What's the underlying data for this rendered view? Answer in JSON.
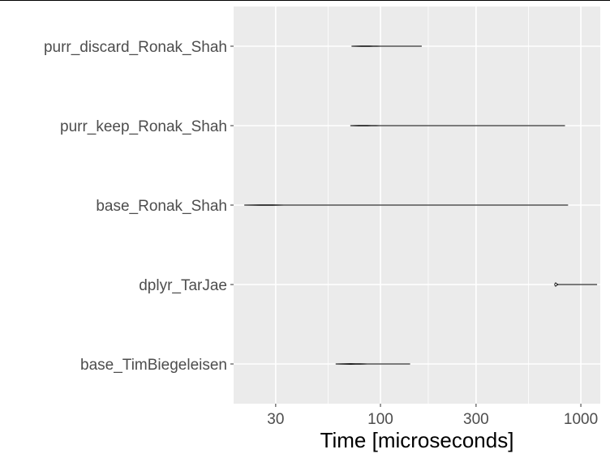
{
  "chart_data": {
    "type": "violin",
    "orientation": "horizontal",
    "x_scale": "log10",
    "xlabel": "Time [microseconds]",
    "xlim": [
      18.5,
      1250
    ],
    "x_ticks": [
      30,
      100,
      300,
      1000
    ],
    "x_tick_labels": [
      "30",
      "100",
      "300",
      "1000"
    ],
    "grid": true,
    "categories": [
      "purr_discard_Ronak_Shah",
      "purr_keep_Ronak_Shah",
      "base_Ronak_Shah",
      "dplyr_TarJae",
      "base_TimBiegeleisen"
    ],
    "series": [
      {
        "category": "purr_discard_Ronak_Shah",
        "min": 72,
        "max": 160,
        "mode": 82,
        "profile": [
          [
            72,
            0.2
          ],
          [
            76,
            0.45
          ],
          [
            80,
            0.7
          ],
          [
            84,
            0.8
          ],
          [
            88,
            0.6
          ],
          [
            92,
            0.45
          ],
          [
            96,
            0.3
          ],
          [
            100,
            0.15
          ],
          [
            106,
            0.06
          ],
          [
            120,
            0.03
          ],
          [
            160,
            0.02
          ]
        ]
      },
      {
        "category": "purr_keep_Ronak_Shah",
        "min": 71,
        "max": 830,
        "mode": 80,
        "profile": [
          [
            71,
            0.2
          ],
          [
            74,
            0.45
          ],
          [
            78,
            0.7
          ],
          [
            82,
            0.8
          ],
          [
            86,
            0.6
          ],
          [
            90,
            0.45
          ],
          [
            95,
            0.3
          ],
          [
            99,
            0.15
          ],
          [
            104,
            0.04
          ],
          [
            150,
            0.02
          ],
          [
            830,
            0.02
          ]
        ]
      },
      {
        "category": "base_Ronak_Shah",
        "min": 21,
        "max": 860,
        "mode": 27,
        "profile": [
          [
            21,
            0.08
          ],
          [
            23,
            0.3
          ],
          [
            25,
            0.55
          ],
          [
            27,
            0.7
          ],
          [
            29,
            0.55
          ],
          [
            31,
            0.3
          ],
          [
            33,
            0.12
          ],
          [
            36,
            0.03
          ],
          [
            80,
            0.02
          ],
          [
            860,
            0.02
          ]
        ]
      },
      {
        "category": "dplyr_TarJae",
        "min": 740,
        "max": 1200,
        "mode": 755,
        "profile": [
          [
            740,
            0.05
          ],
          [
            745,
            4.5
          ],
          [
            752,
            4.5
          ],
          [
            760,
            1.5
          ],
          [
            768,
            0.4
          ],
          [
            778,
            0.2
          ],
          [
            790,
            0.04
          ],
          [
            900,
            0.02
          ],
          [
            1200,
            0.02
          ]
        ]
      },
      {
        "category": "base_TimBiegeleisen",
        "min": 60,
        "max": 140,
        "mode": 72,
        "profile": [
          [
            60,
            0.25
          ],
          [
            63,
            0.45
          ],
          [
            67,
            0.7
          ],
          [
            71,
            0.85
          ],
          [
            75,
            0.7
          ],
          [
            79,
            0.55
          ],
          [
            83,
            0.35
          ],
          [
            86,
            0.15
          ],
          [
            90,
            0.05
          ],
          [
            110,
            0.03
          ],
          [
            140,
            0.02
          ]
        ]
      }
    ]
  }
}
